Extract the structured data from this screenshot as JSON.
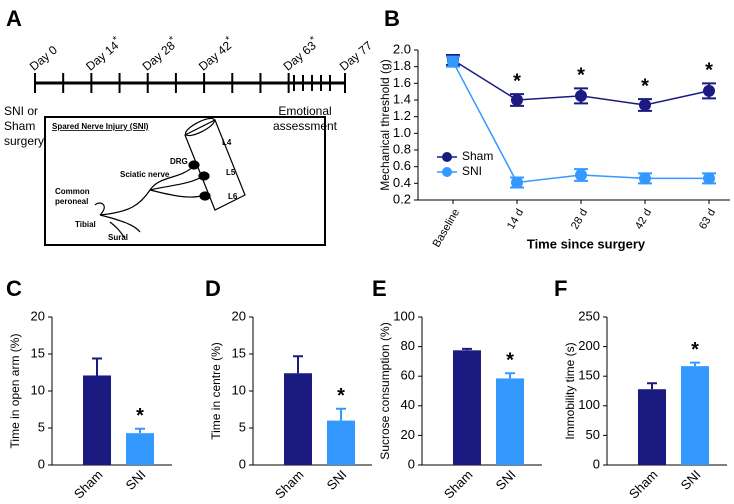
{
  "chart_data": [
    {
      "type": "timeline",
      "panel": "A",
      "xlim": [
        0,
        77
      ],
      "xticks": [
        0,
        7,
        14,
        21,
        28,
        35,
        42,
        49,
        56,
        63,
        77
      ],
      "events": [
        {
          "label": "Day 0",
          "x": 0
        },
        {
          "label": "Day 14",
          "x": 14,
          "note": "*"
        },
        {
          "label": "Day 28",
          "x": 28,
          "note": "*"
        },
        {
          "label": "Day 42",
          "x": 42,
          "note": "*"
        },
        {
          "label": "Day 63",
          "x": 63,
          "note": "*"
        },
        {
          "label": "Day 77",
          "x": 77
        }
      ],
      "left_note": [
        "SNI or",
        "Sham",
        "surgery"
      ],
      "right_note": [
        "Emotional",
        "assessment"
      ],
      "inset": {
        "title": "Spared Nerve Injury (SNI)",
        "labels": [
          "DRG",
          "L4",
          "L5",
          "L6",
          "Sciatic nerve",
          "Common",
          "peroneal",
          "Tibial",
          "Sural"
        ]
      }
    },
    {
      "type": "line",
      "panel": "B",
      "ylabel": "Mechanical threshold (g)",
      "xlabel": "Time since surgery",
      "categories": [
        "Baseline",
        "14 d",
        "28 d",
        "42 d",
        "63 d"
      ],
      "ylim": [
        0.2,
        2.0
      ],
      "yticks": [
        0.2,
        0.4,
        0.6,
        0.8,
        {
          "value": 1.0,
          "label": "1.0"
        },
        1.2,
        1.4,
        1.6,
        1.8,
        {
          "value": 2.0,
          "label": "2.0"
        }
      ],
      "series": [
        {
          "name": "Sham",
          "color": "#1a1a80",
          "values": [
            1.88,
            1.4,
            1.45,
            1.34,
            1.51
          ],
          "errors": [
            0.06,
            0.07,
            0.09,
            0.07,
            0.09
          ]
        },
        {
          "name": "SNI",
          "color": "#3399ff",
          "values": [
            1.86,
            0.41,
            0.5,
            0.46,
            0.46
          ],
          "errors": [
            0.06,
            0.06,
            0.07,
            0.06,
            0.06
          ]
        }
      ],
      "annotations": [
        {
          "text": "*",
          "x": "14 d"
        },
        {
          "text": "*",
          "x": "28 d"
        },
        {
          "text": "*",
          "x": "42 d"
        },
        {
          "text": "*",
          "x": "63 d"
        }
      ],
      "legend": "left"
    },
    {
      "type": "bar",
      "panel": "C",
      "ylabel": "Time in open arm (%)",
      "categories": [
        "Sham",
        "SNI"
      ],
      "colors": [
        "#1a1a80",
        "#3399ff"
      ],
      "values": [
        12.1,
        4.3
      ],
      "errors": [
        2.3,
        0.6
      ],
      "ylim": [
        0,
        20
      ],
      "yticks": [
        0,
        5,
        10,
        15,
        20
      ],
      "annotations": [
        {
          "text": "*",
          "x": "SNI"
        }
      ]
    },
    {
      "type": "bar",
      "panel": "D",
      "ylabel": "Time in centre (%)",
      "categories": [
        "Sham",
        "SNI"
      ],
      "colors": [
        "#1a1a80",
        "#3399ff"
      ],
      "values": [
        12.4,
        6.0
      ],
      "errors": [
        2.3,
        1.6
      ],
      "ylim": [
        0,
        20
      ],
      "yticks": [
        0,
        5,
        10,
        15,
        20
      ],
      "annotations": [
        {
          "text": "*",
          "x": "SNI"
        }
      ]
    },
    {
      "type": "bar",
      "panel": "E",
      "ylabel": "Sucrose consumption (%)",
      "categories": [
        "Sham",
        "SNI"
      ],
      "colors": [
        "#1a1a80",
        "#3399ff"
      ],
      "values": [
        77.5,
        58.5
      ],
      "errors": [
        1.0,
        3.5
      ],
      "ylim": [
        0,
        100
      ],
      "yticks": [
        0,
        20,
        40,
        60,
        80,
        100
      ],
      "annotations": [
        {
          "text": "*",
          "x": "SNI"
        }
      ]
    },
    {
      "type": "bar",
      "panel": "F",
      "ylabel": "Immobility time (s)",
      "categories": [
        "Sham",
        "SNI"
      ],
      "colors": [
        "#1a1a80",
        "#3399ff"
      ],
      "values": [
        128,
        167
      ],
      "errors": [
        10,
        6
      ],
      "ylim": [
        0,
        250
      ],
      "yticks": [
        0,
        50,
        100,
        150,
        200,
        250
      ],
      "annotations": [
        {
          "text": "*",
          "x": "SNI"
        }
      ]
    }
  ]
}
